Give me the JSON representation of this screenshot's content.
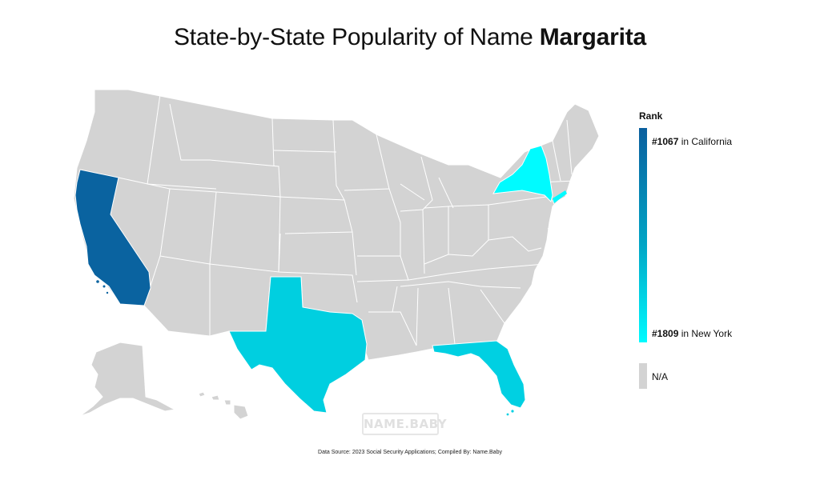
{
  "title": {
    "prefix": "State-by-State Popularity of Name",
    "name": "Margarita"
  },
  "legend": {
    "title": "Rank",
    "top_rank": "#1067",
    "top_state": "in California",
    "bottom_rank": "#1809",
    "bottom_state": "in New York",
    "na_label": "N/A",
    "gradient_top_color": "#0a5f9e",
    "gradient_bottom_color": "#00fbff",
    "na_color": "#d3d3d3"
  },
  "states": [
    {
      "id": "CA",
      "name": "California",
      "rank": 1067,
      "color": "#0a63a0"
    },
    {
      "id": "TX",
      "name": "Texas",
      "rank": null,
      "color": "#00cfe0"
    },
    {
      "id": "FL",
      "name": "Florida",
      "rank": null,
      "color": "#00d0e2"
    },
    {
      "id": "NY",
      "name": "New York",
      "rank": 1809,
      "color": "#00fbff"
    }
  ],
  "watermark": "NAME.BABY",
  "source": "Data Source: 2023 Social Security Applications; Compiled By: Name.Baby"
}
